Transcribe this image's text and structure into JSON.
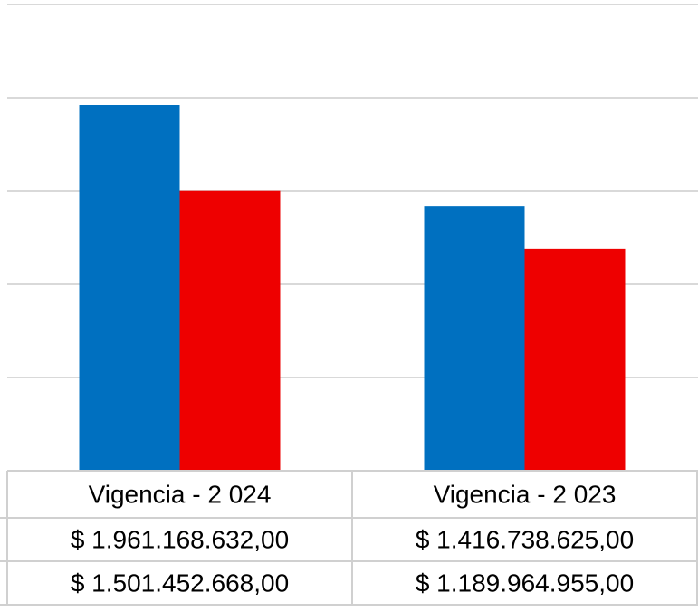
{
  "chart_data": {
    "type": "bar",
    "categories": [
      "Vigencia - 2 024",
      "Vigencia - 2 023"
    ],
    "series": [
      {
        "color": "#0070c0",
        "values": [
          1961168632,
          1416738625
        ],
        "value_labels": [
          "$ 1.961.168.632,00",
          "$ 1.416.738.625,00"
        ]
      },
      {
        "color": "#ee0000",
        "values": [
          1501452668,
          1189964955
        ],
        "value_labels": [
          "$ 1.501.452.668,00",
          "$ 1.189.964.955,00"
        ]
      }
    ],
    "ylim": [
      0,
      2500000000
    ],
    "yticks": [
      0,
      500000000,
      1000000000,
      1500000000,
      2000000000,
      2500000000
    ],
    "grid": true,
    "data_table": true
  }
}
